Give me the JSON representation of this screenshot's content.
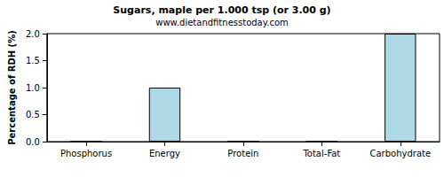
{
  "chart_data": {
    "type": "bar",
    "title": "Sugars, maple per 1.000 tsp (or 3.00 g)",
    "subtitle": "www.dietandfitnesstoday.com",
    "y_label": "Percentage of RDH (%)",
    "categories": [
      "Phosphorus",
      "Energy",
      "Protein",
      "Total-Fat",
      "Carbohydrate"
    ],
    "values": [
      0,
      1,
      0,
      0,
      2
    ],
    "color": "#add8e6",
    "ylim": [
      0,
      2
    ],
    "yticks": [
      {
        "value": 0,
        "label": "0.0"
      },
      {
        "value": 0.5,
        "label": "0.5"
      },
      {
        "value": 1,
        "label": "1.0"
      },
      {
        "value": 1.5,
        "label": "1.5"
      },
      {
        "value": 2,
        "label": "2.0"
      }
    ],
    "grid": false
  }
}
